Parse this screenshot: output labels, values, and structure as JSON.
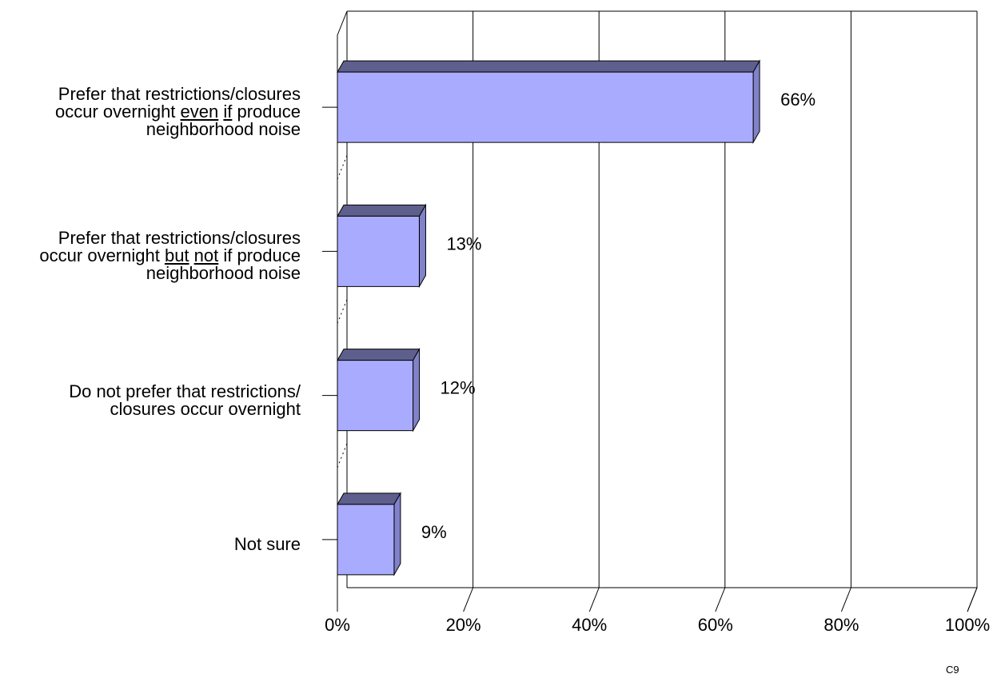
{
  "chart_data": {
    "type": "bar",
    "orientation": "horizontal",
    "style": "3d",
    "categories": [
      [
        [
          {
            "t": "Prefer that restrictions/closures"
          }
        ],
        [
          {
            "t": "occur overnight "
          },
          {
            "t": "even",
            "u": true
          },
          {
            "t": " "
          },
          {
            "t": "if",
            "u": true
          },
          {
            "t": " produce"
          }
        ],
        [
          {
            "t": "neighborhood noise"
          }
        ]
      ],
      [
        [
          {
            "t": "Prefer that restrictions/closures"
          }
        ],
        [
          {
            "t": "occur overnight "
          },
          {
            "t": "but",
            "u": true
          },
          {
            "t": " "
          },
          {
            "t": "not",
            "u": true
          },
          {
            "t": " if produce"
          }
        ],
        [
          {
            "t": "neighborhood noise"
          }
        ]
      ],
      [
        [
          {
            "t": "Do not prefer that restrictions/"
          }
        ],
        [
          {
            "t": "closures occur overnight"
          }
        ]
      ],
      [
        [
          {
            "t": "Not sure"
          }
        ]
      ]
    ],
    "values": [
      66,
      13,
      12,
      9
    ],
    "data_labels": [
      "66%",
      "13%",
      "12%",
      "9%"
    ],
    "xticks": [
      "0%",
      "20%",
      "40%",
      "60%",
      "80%",
      "100%"
    ],
    "xlim": [
      0,
      100
    ],
    "grid": true,
    "legend": "none",
    "colors": {
      "bar_front": "#A9ABFE",
      "bar_top": "#5E5F8C",
      "bar_side": "#8182CA",
      "grid": "#000000"
    }
  },
  "footnote": "C9"
}
